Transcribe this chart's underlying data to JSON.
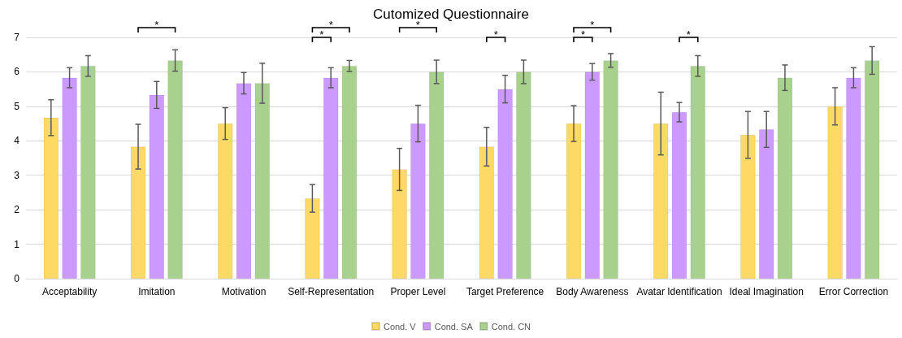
{
  "chart_data": {
    "type": "bar",
    "title": "Cutomized Questionnaire",
    "categories": [
      "Acceptability",
      "Imitation",
      "Motivation",
      "Self-Representation",
      "Proper Level",
      "Target Preference",
      "Body Awareness",
      "Avatar Identification",
      "Ideal Imagination",
      "Error Correction"
    ],
    "series": [
      {
        "name": "Cond. V",
        "color": "#ffd966",
        "values": [
          4.67,
          3.83,
          4.5,
          2.33,
          3.17,
          3.83,
          4.5,
          4.5,
          4.17,
          5.0
        ],
        "errors": [
          0.52,
          0.65,
          0.46,
          0.4,
          0.61,
          0.56,
          0.52,
          0.91,
          0.68,
          0.54
        ]
      },
      {
        "name": "Cond. SA",
        "color": "#cc99ff",
        "values": [
          5.83,
          5.33,
          5.67,
          5.83,
          4.5,
          5.5,
          6.0,
          4.83,
          4.33,
          5.83
        ],
        "errors": [
          0.29,
          0.39,
          0.31,
          0.29,
          0.53,
          0.4,
          0.24,
          0.28,
          0.52,
          0.29
        ]
      },
      {
        "name": "Cond. CN",
        "color": "#a9d18e",
        "values": [
          6.17,
          6.33,
          5.67,
          6.17,
          6.0,
          6.0,
          6.33,
          6.17,
          5.83,
          6.33
        ],
        "errors": [
          0.3,
          0.31,
          0.58,
          0.16,
          0.34,
          0.34,
          0.2,
          0.3,
          0.37,
          0.4
        ]
      }
    ],
    "annotations": [
      "*",
      "*",
      "*",
      "*",
      "*",
      "*",
      "*",
      "*"
    ],
    "ylim": [
      0,
      7
    ],
    "yticks": [
      0,
      1,
      2,
      3,
      4,
      5,
      6,
      7
    ],
    "grid": "y",
    "legend": "bottom"
  }
}
